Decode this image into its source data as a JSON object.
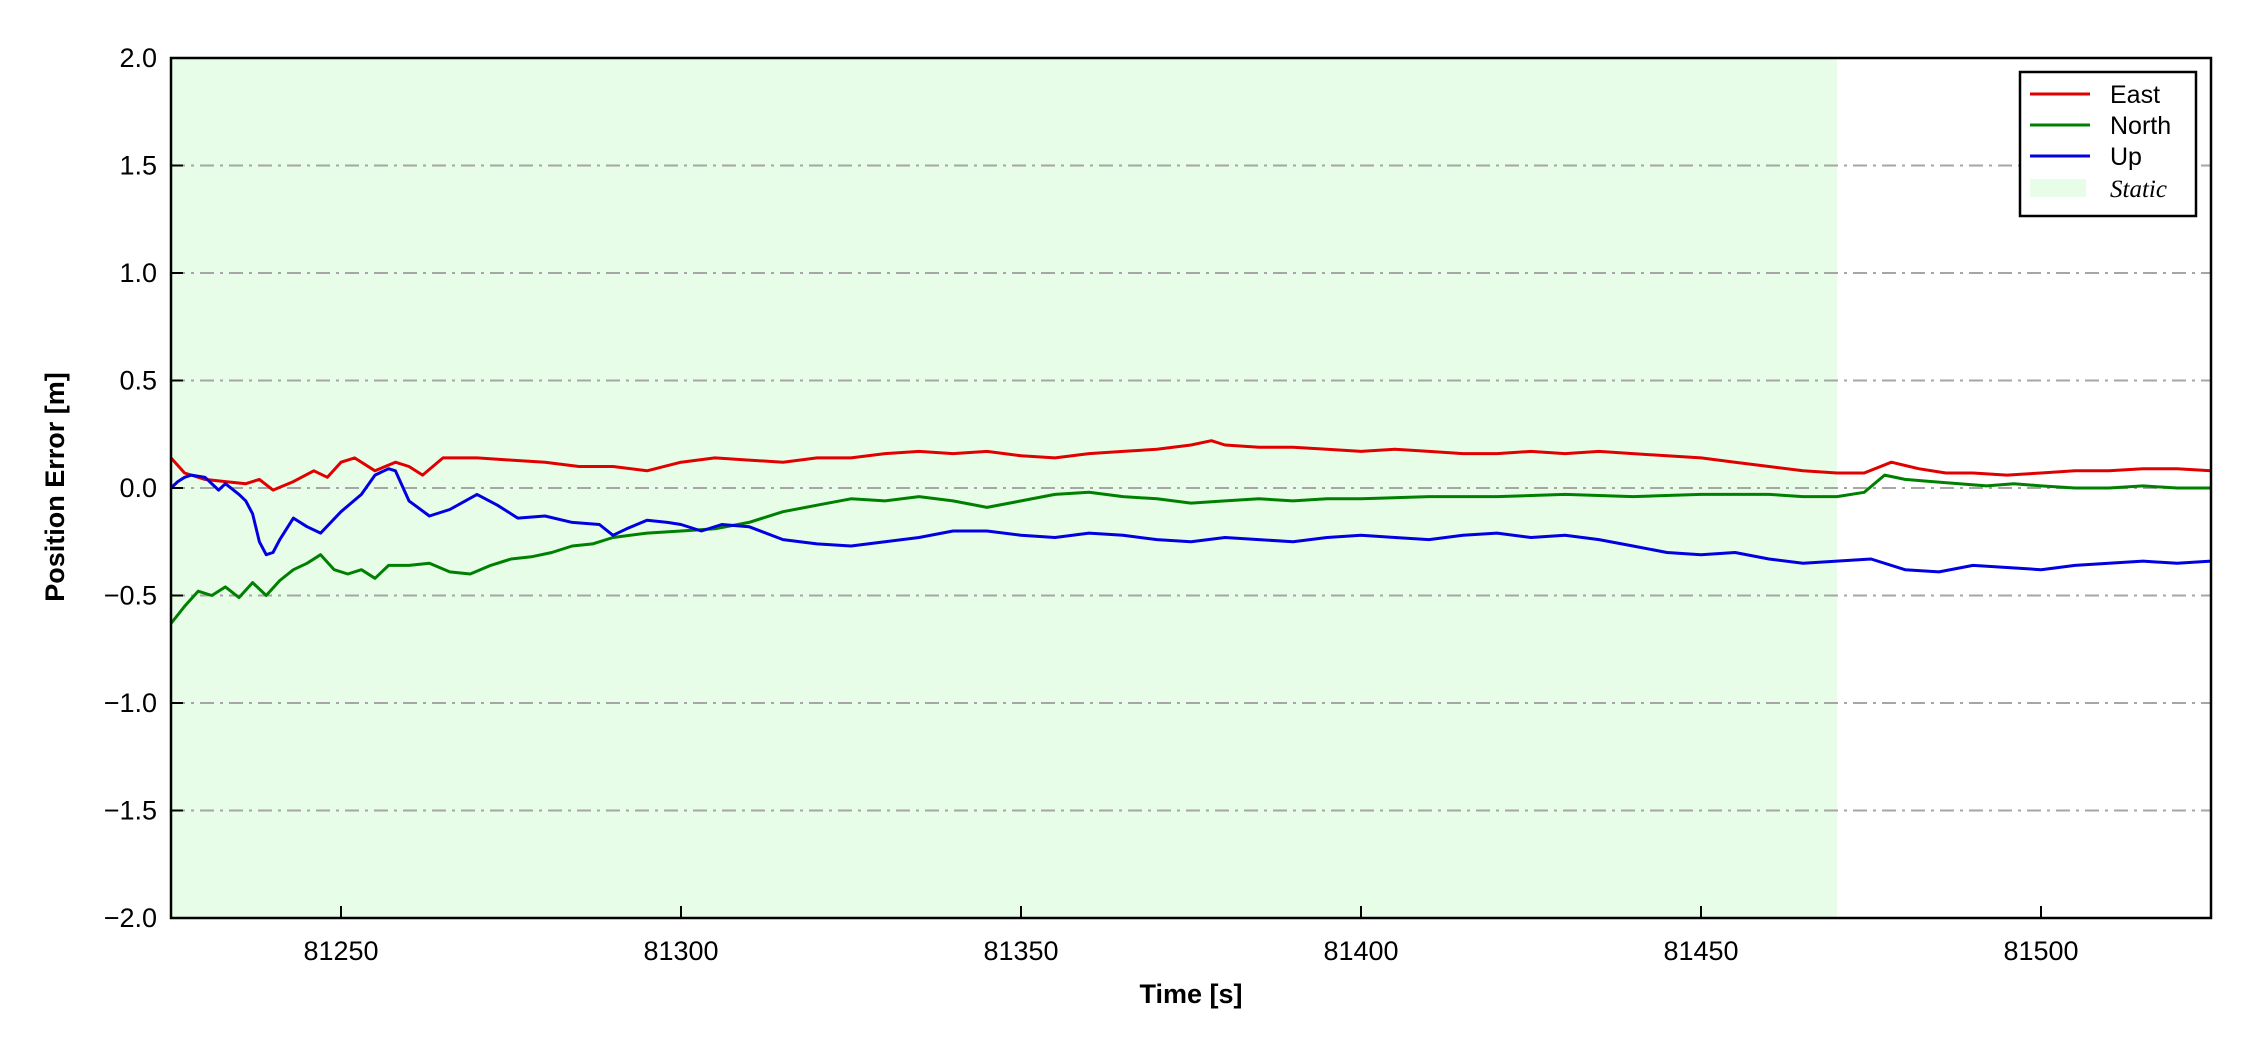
{
  "chart_data": {
    "type": "line",
    "xlabel": "Time [s]",
    "ylabel": "Position Error [m]",
    "xlim": [
      81225,
      81525
    ],
    "ylim": [
      -2.0,
      2.0
    ],
    "xticks": [
      81250,
      81300,
      81350,
      81400,
      81450,
      81500
    ],
    "xtick_labels": [
      "81250",
      "81300",
      "81350",
      "81400",
      "81450",
      "81500"
    ],
    "yticks": [
      2.0,
      1.5,
      1.0,
      0.5,
      0.0,
      -0.5,
      -1.0,
      -1.5,
      -2.0
    ],
    "ytick_labels": [
      "2.0",
      "1.5",
      "1.0",
      "0.5",
      "0.0",
      "−0.5",
      "−1.0",
      "−1.5",
      "−2.0"
    ],
    "grid": "horizontal dash-dot",
    "legend_position": "top-right",
    "static_region": {
      "label": "Static",
      "x_start": 81225,
      "x_end": 81470,
      "color": "#e8fde8"
    },
    "series": [
      {
        "name": "East",
        "color": "#e00000",
        "x": [
          81225,
          81227,
          81230,
          81233,
          81236,
          81238,
          81240,
          81243,
          81246,
          81248,
          81250,
          81252,
          81255,
          81258,
          81260,
          81262,
          81265,
          81270,
          81275,
          81280,
          81285,
          81290,
          81295,
          81300,
          81305,
          81310,
          81315,
          81320,
          81325,
          81330,
          81335,
          81340,
          81345,
          81350,
          81355,
          81360,
          81365,
          81370,
          81375,
          81378,
          81380,
          81385,
          81390,
          81395,
          81400,
          81405,
          81410,
          81415,
          81420,
          81425,
          81430,
          81435,
          81440,
          81445,
          81450,
          81455,
          81460,
          81465,
          81470,
          81474,
          81478,
          81482,
          81486,
          81490,
          81495,
          81500,
          81505,
          81510,
          81515,
          81520,
          81525
        ],
        "y": [
          0.14,
          0.07,
          0.04,
          0.03,
          0.02,
          0.04,
          -0.01,
          0.03,
          0.08,
          0.05,
          0.12,
          0.14,
          0.08,
          0.12,
          0.1,
          0.06,
          0.14,
          0.14,
          0.13,
          0.12,
          0.1,
          0.1,
          0.08,
          0.12,
          0.14,
          0.13,
          0.12,
          0.14,
          0.14,
          0.16,
          0.17,
          0.16,
          0.17,
          0.15,
          0.14,
          0.16,
          0.17,
          0.18,
          0.2,
          0.22,
          0.2,
          0.19,
          0.19,
          0.18,
          0.17,
          0.18,
          0.17,
          0.16,
          0.16,
          0.17,
          0.16,
          0.17,
          0.16,
          0.15,
          0.14,
          0.12,
          0.1,
          0.08,
          0.07,
          0.07,
          0.12,
          0.09,
          0.07,
          0.07,
          0.06,
          0.07,
          0.08,
          0.08,
          0.09,
          0.09,
          0.08
        ]
      },
      {
        "name": "North",
        "color": "#008000",
        "x": [
          81225,
          81227,
          81229,
          81231,
          81233,
          81235,
          81237,
          81239,
          81241,
          81243,
          81245,
          81247,
          81249,
          81251,
          81253,
          81255,
          81257,
          81260,
          81263,
          81266,
          81269,
          81272,
          81275,
          81278,
          81281,
          81284,
          81287,
          81290,
          81295,
          81300,
          81305,
          81310,
          81315,
          81320,
          81325,
          81330,
          81335,
          81340,
          81345,
          81350,
          81355,
          81360,
          81365,
          81370,
          81375,
          81380,
          81385,
          81390,
          81395,
          81400,
          81410,
          81420,
          81430,
          81440,
          81450,
          81460,
          81465,
          81470,
          81474,
          81477,
          81480,
          81484,
          81488,
          81492,
          81496,
          81500,
          81505,
          81510,
          81515,
          81520,
          81525
        ],
        "y": [
          -0.63,
          -0.55,
          -0.48,
          -0.5,
          -0.46,
          -0.51,
          -0.44,
          -0.5,
          -0.43,
          -0.38,
          -0.35,
          -0.31,
          -0.38,
          -0.4,
          -0.38,
          -0.42,
          -0.36,
          -0.36,
          -0.35,
          -0.39,
          -0.4,
          -0.36,
          -0.33,
          -0.32,
          -0.3,
          -0.27,
          -0.26,
          -0.23,
          -0.21,
          -0.2,
          -0.19,
          -0.16,
          -0.11,
          -0.08,
          -0.05,
          -0.06,
          -0.04,
          -0.06,
          -0.09,
          -0.06,
          -0.03,
          -0.02,
          -0.04,
          -0.05,
          -0.07,
          -0.06,
          -0.05,
          -0.06,
          -0.05,
          -0.05,
          -0.04,
          -0.04,
          -0.03,
          -0.04,
          -0.03,
          -0.03,
          -0.04,
          -0.04,
          -0.02,
          0.06,
          0.04,
          0.03,
          0.02,
          0.01,
          0.02,
          0.01,
          0.0,
          0.0,
          0.01,
          0.0,
          0.0
        ]
      },
      {
        "name": "Up",
        "color": "#0000e0",
        "x": [
          81225,
          81226,
          81227,
          81228,
          81230,
          81232,
          81233,
          81235,
          81236,
          81237,
          81238,
          81239,
          81240,
          81241,
          81243,
          81245,
          81247,
          81250,
          81253,
          81255,
          81257,
          81258,
          81260,
          81263,
          81266,
          81270,
          81273,
          81276,
          81280,
          81284,
          81288,
          81290,
          81292,
          81295,
          81298,
          81300,
          81303,
          81306,
          81310,
          81315,
          81320,
          81325,
          81330,
          81335,
          81340,
          81345,
          81350,
          81355,
          81360,
          81365,
          81370,
          81375,
          81380,
          81385,
          81390,
          81395,
          81400,
          81405,
          81410,
          81415,
          81420,
          81425,
          81430,
          81435,
          81440,
          81445,
          81450,
          81455,
          81460,
          81465,
          81470,
          81475,
          81480,
          81485,
          81490,
          81495,
          81500,
          81505,
          81510,
          81515,
          81520,
          81525
        ],
        "y": [
          0.0,
          0.03,
          0.05,
          0.06,
          0.05,
          -0.01,
          0.02,
          -0.03,
          -0.06,
          -0.12,
          -0.25,
          -0.31,
          -0.3,
          -0.24,
          -0.14,
          -0.18,
          -0.21,
          -0.11,
          -0.03,
          0.06,
          0.09,
          0.08,
          -0.06,
          -0.13,
          -0.1,
          -0.03,
          -0.08,
          -0.14,
          -0.13,
          -0.16,
          -0.17,
          -0.22,
          -0.19,
          -0.15,
          -0.16,
          -0.17,
          -0.2,
          -0.17,
          -0.18,
          -0.24,
          -0.26,
          -0.27,
          -0.25,
          -0.23,
          -0.2,
          -0.2,
          -0.22,
          -0.23,
          -0.21,
          -0.22,
          -0.24,
          -0.25,
          -0.23,
          -0.24,
          -0.25,
          -0.23,
          -0.22,
          -0.23,
          -0.24,
          -0.22,
          -0.21,
          -0.23,
          -0.22,
          -0.24,
          -0.27,
          -0.3,
          -0.31,
          -0.3,
          -0.33,
          -0.35,
          -0.34,
          -0.33,
          -0.38,
          -0.39,
          -0.36,
          -0.37,
          -0.38,
          -0.36,
          -0.35,
          -0.34,
          -0.35,
          -0.34
        ]
      }
    ]
  }
}
